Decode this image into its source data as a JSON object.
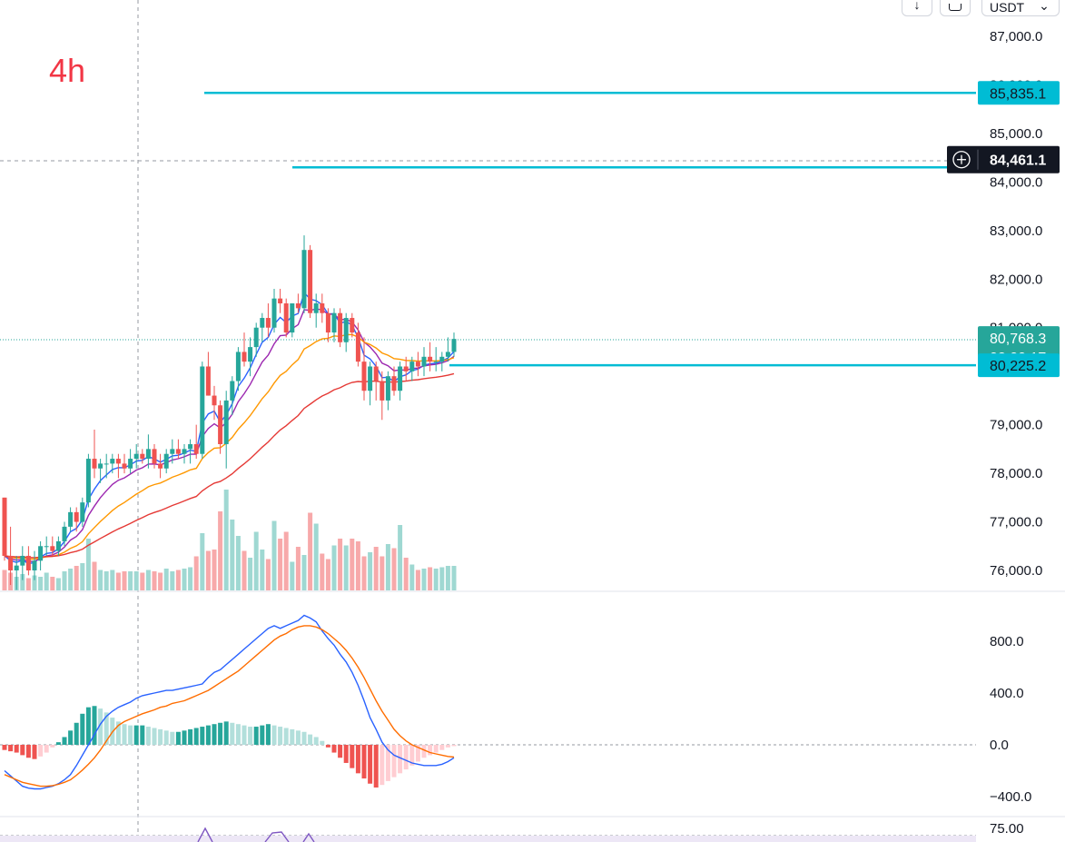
{
  "timeframe": "4h",
  "toolbar": {
    "currency": "USDT",
    "download_icon": "arrow-down-icon",
    "square_icon": "square-icon",
    "caret_icon": "chevron-down-icon"
  },
  "colors": {
    "up": "#26a69a",
    "down": "#ef5350",
    "vol_up": "#9fd8d2",
    "vol_down": "#f7a9aa",
    "ema_fast": "#2962ff",
    "ema_mid": "#9c27b0",
    "ema_slow": "#ff9800",
    "ema_long": "#e53935",
    "hline": "#00bcd4",
    "macd": "#2962ff",
    "signal": "#ff6d00",
    "hist_up_strong": "#26a69a",
    "hist_up_weak": "#b2dfdb",
    "hist_down_strong": "#ef5350",
    "hist_down_weak": "#ffcdd2"
  },
  "chart_data": [
    {
      "type": "candlestick",
      "title": "",
      "ylim": [
        75800,
        87300
      ],
      "y_ticks": [
        "87,000.0",
        "86,000.0",
        "85,000.0",
        "84,000.0",
        "83,000.0",
        "82,000.0",
        "81,000.0",
        "79,000.0",
        "78,000.0",
        "77,000.0",
        "76,000.0"
      ],
      "y_tick_values": [
        87000,
        86000,
        85000,
        84000,
        83000,
        82000,
        81000,
        79000,
        78000,
        77000,
        76000
      ],
      "horizontal_lines": [
        85835.1,
        84301,
        80225.2
      ],
      "price_tags": [
        {
          "label": "85,835.1",
          "value": 85835.1,
          "style": "hline"
        },
        {
          "label": "84,461.1",
          "value": 84461.1,
          "style": "crosshair"
        },
        {
          "label": "80,768.3",
          "sub": "02:00:17",
          "value": 80768.3,
          "style": "last"
        },
        {
          "label": "80,225.2",
          "value": 80225.2,
          "style": "hline"
        }
      ],
      "ohlc": [
        [
          77500,
          77500,
          76200,
          76300
        ],
        [
          76300,
          76900,
          75700,
          76000
        ],
        [
          76000,
          76300,
          75600,
          76100
        ],
        [
          76100,
          76500,
          75800,
          76300
        ],
        [
          76300,
          76500,
          75900,
          76000
        ],
        [
          76000,
          76400,
          75800,
          76200
        ],
        [
          76200,
          76600,
          76000,
          76500
        ],
        [
          76500,
          76700,
          76300,
          76500
        ],
        [
          76500,
          76700,
          76300,
          76400
        ],
        [
          76400,
          76700,
          76300,
          76600
        ],
        [
          76600,
          77000,
          76500,
          76900
        ],
        [
          76900,
          77300,
          76800,
          77200
        ],
        [
          77200,
          77300,
          76800,
          77000
        ],
        [
          77000,
          77500,
          76900,
          77400
        ],
        [
          77400,
          78400,
          77300,
          78300
        ],
        [
          78300,
          78900,
          77900,
          78100
        ],
        [
          78100,
          78300,
          77800,
          78200
        ],
        [
          78200,
          78400,
          77900,
          78200
        ],
        [
          78200,
          78400,
          78000,
          78300
        ],
        [
          78300,
          78400,
          77900,
          78200
        ],
        [
          78200,
          78400,
          78000,
          78100
        ],
        [
          78100,
          78500,
          78000,
          78300
        ],
        [
          78300,
          78600,
          78100,
          78400
        ],
        [
          78400,
          78500,
          78200,
          78300
        ],
        [
          78300,
          78800,
          78100,
          78500
        ],
        [
          78500,
          78600,
          78100,
          78200
        ],
        [
          78200,
          78400,
          77900,
          78100
        ],
        [
          78100,
          78500,
          78000,
          78400
        ],
        [
          78400,
          78700,
          78200,
          78500
        ],
        [
          78500,
          78700,
          78300,
          78400
        ],
        [
          78400,
          78600,
          78200,
          78500
        ],
        [
          78500,
          78700,
          78200,
          78600
        ],
        [
          78600,
          79000,
          78300,
          78400
        ],
        [
          78400,
          80300,
          78300,
          80200
        ],
        [
          80200,
          80500,
          79600,
          79600
        ],
        [
          79600,
          79800,
          79100,
          79400
        ],
        [
          79400,
          79500,
          78400,
          78600
        ],
        [
          78600,
          79700,
          78100,
          79500
        ],
        [
          79500,
          80000,
          79200,
          79900
        ],
        [
          79900,
          80600,
          79700,
          80500
        ],
        [
          80500,
          80900,
          80200,
          80300
        ],
        [
          80300,
          80800,
          80000,
          80600
        ],
        [
          80600,
          81100,
          80400,
          81000
        ],
        [
          81000,
          81300,
          80700,
          81200
        ],
        [
          81200,
          81500,
          80800,
          81000
        ],
        [
          81000,
          81800,
          80900,
          81600
        ],
        [
          81600,
          81800,
          81300,
          81500
        ],
        [
          81500,
          81600,
          80800,
          80900
        ],
        [
          80900,
          81500,
          80800,
          81500
        ],
        [
          81500,
          81700,
          81300,
          81400
        ],
        [
          81400,
          82900,
          81300,
          82600
        ],
        [
          82600,
          82700,
          81200,
          81300
        ],
        [
          81300,
          81700,
          81000,
          81500
        ],
        [
          81500,
          81700,
          81100,
          81300
        ],
        [
          81300,
          81400,
          80700,
          80900
        ],
        [
          80900,
          81400,
          80700,
          81300
        ],
        [
          81300,
          81400,
          80600,
          80700
        ],
        [
          80700,
          81300,
          80500,
          81200
        ],
        [
          81200,
          81300,
          80800,
          80900
        ],
        [
          80900,
          81100,
          80200,
          80300
        ],
        [
          80300,
          80800,
          79500,
          79700
        ],
        [
          79700,
          80300,
          79400,
          80200
        ],
        [
          80200,
          80300,
          79500,
          79900
        ],
        [
          79900,
          80100,
          79100,
          79500
        ],
        [
          79500,
          80100,
          79300,
          80000
        ],
        [
          80000,
          80200,
          79600,
          79700
        ],
        [
          79700,
          80300,
          79500,
          80200
        ],
        [
          80200,
          80400,
          79900,
          80100
        ],
        [
          80100,
          80400,
          79900,
          80300
        ],
        [
          80300,
          80500,
          80000,
          80200
        ],
        [
          80200,
          80600,
          80000,
          80400
        ],
        [
          80400,
          80700,
          80100,
          80300
        ],
        [
          80300,
          80600,
          80100,
          80300
        ],
        [
          80300,
          80500,
          80100,
          80400
        ],
        [
          80400,
          80800,
          80300,
          80500
        ],
        [
          80500,
          80900,
          80400,
          80768
        ]
      ],
      "volume": [
        1.5,
        1.3,
        1.0,
        1.2,
        0.9,
        1.1,
        1.0,
        1.3,
        1.0,
        0.9,
        1.4,
        1.6,
        1.8,
        2.0,
        3.8,
        2.1,
        1.5,
        1.4,
        1.5,
        1.3,
        1.4,
        1.4,
        1.4,
        1.3,
        1.5,
        1.4,
        1.3,
        1.6,
        1.4,
        1.5,
        1.6,
        1.7,
        2.5,
        4.2,
        2.9,
        3.0,
        5.8,
        7.4,
        5.2,
        4.0,
        2.9,
        2.4,
        4.3,
        3.0,
        2.3,
        5.1,
        3.8,
        4.3,
        2.1,
        3.2,
        2.6,
        5.7,
        4.9,
        2.7,
        2.3,
        3.3,
        3.8,
        3.3,
        3.8,
        3.6,
        2.5,
        2.8,
        3.2,
        2.5,
        3.4,
        3.1,
        4.8,
        2.4,
        1.9,
        1.5,
        1.6,
        1.7,
        1.6,
        1.7,
        1.8,
        1.8
      ],
      "volume_ylim": [
        0,
        10
      ]
    },
    {
      "type": "line",
      "title": "",
      "ylim": [
        -530,
        1130
      ],
      "y_ticks": [
        "800.0",
        "400.0",
        "0.0",
        "−400.0"
      ],
      "y_tick_values": [
        800,
        400,
        0,
        -400
      ],
      "series": [
        {
          "values": [
            -200,
            -240,
            -280,
            -320,
            -335,
            -340,
            -340,
            -330,
            -320,
            -300,
            -270,
            -230,
            -160,
            -80,
            0,
            80,
            160,
            220,
            260,
            290,
            310,
            330,
            360,
            380,
            390,
            400,
            410,
            420,
            420,
            430,
            440,
            450,
            460,
            470,
            520,
            560,
            580,
            620,
            660,
            700,
            740,
            780,
            820,
            860,
            900,
            920,
            900,
            920,
            940,
            960,
            1000,
            980,
            950,
            880,
            820,
            770,
            700,
            640,
            560,
            460,
            340,
            210,
            120,
            20,
            -40,
            -80,
            -100,
            -120,
            -140,
            -150,
            -160,
            -160,
            -160,
            -150,
            -130,
            -100
          ]
        },
        {
          "values": [
            -230,
            -250,
            -270,
            -290,
            -300,
            -310,
            -320,
            -320,
            -315,
            -305,
            -290,
            -270,
            -235,
            -195,
            -150,
            -100,
            -40,
            30,
            100,
            150,
            180,
            200,
            220,
            240,
            255,
            270,
            290,
            300,
            320,
            330,
            340,
            360,
            380,
            400,
            420,
            450,
            480,
            510,
            540,
            570,
            610,
            650,
            690,
            730,
            770,
            810,
            840,
            860,
            890,
            910,
            920,
            920,
            910,
            890,
            860,
            820,
            780,
            730,
            670,
            600,
            520,
            430,
            340,
            260,
            190,
            120,
            70,
            30,
            0,
            -20,
            -40,
            -60,
            -70,
            -80,
            -90,
            -95
          ]
        }
      ],
      "histogram": [
        -40,
        -50,
        -60,
        -80,
        -100,
        -110,
        -90,
        -60,
        -20,
        20,
        60,
        110,
        170,
        240,
        290,
        300,
        280,
        250,
        210,
        180,
        160,
        150,
        150,
        150,
        140,
        130,
        120,
        110,
        100,
        100,
        110,
        120,
        130,
        140,
        150,
        160,
        170,
        180,
        170,
        160,
        150,
        140,
        140,
        150,
        160,
        150,
        140,
        130,
        120,
        110,
        100,
        80,
        60,
        30,
        -20,
        -60,
        -100,
        -140,
        -180,
        -220,
        -260,
        -300,
        -330,
        -310,
        -280,
        -250,
        -220,
        -190,
        -160,
        -130,
        -100,
        -80,
        -60,
        -40,
        -20,
        -10
      ]
    },
    {
      "type": "line",
      "title": "",
      "y_ticks": [
        "75.00"
      ]
    }
  ]
}
